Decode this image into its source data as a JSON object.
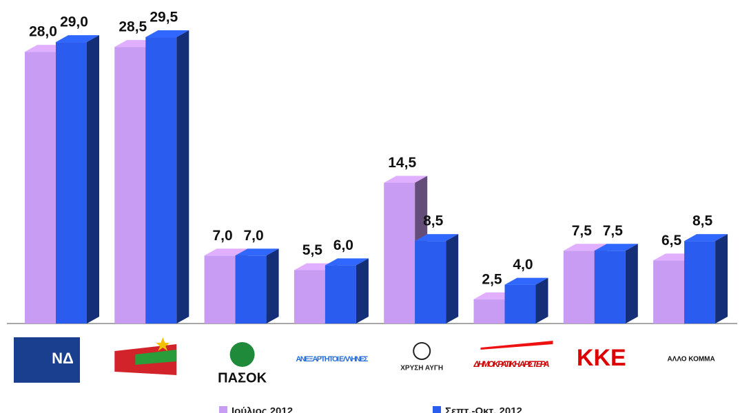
{
  "chart_data": {
    "type": "bar3d",
    "categories": [
      "ΝΔ",
      null,
      "ΠΑΣΟΚ",
      "ΑΝΕΞΑΡΤΗΤΟΙ ΕΛΛΗΝΕΣ",
      "ΧΡΥΣΗ ΑΥΓΗ",
      "ΔΗΜΟΚΡΑΤΙΚΗ ΑΡΙΣΤΕΡΑ",
      "ΚΚΕ",
      "ΑΛΛΟ ΚΟΜΜΑ"
    ],
    "series": [
      {
        "name": "Ιούλιος 2012",
        "color": "#c89cf2",
        "values": [
          28.0,
          28.5,
          7.0,
          5.5,
          14.5,
          2.5,
          7.5,
          6.5
        ],
        "value_labels": [
          "28,0",
          "28,5",
          "7,0",
          "5,5",
          "14,5",
          "2,5",
          "7,5",
          "6,5"
        ]
      },
      {
        "name": "Σεπτ.-Οκτ. 2012",
        "color": "#2a5cf0",
        "values": [
          29.0,
          29.5,
          7.0,
          6.0,
          8.5,
          4.0,
          7.5,
          8.5
        ],
        "value_labels": [
          "29,0",
          "29,5",
          "7,0",
          "6,0",
          "8,5",
          "4,0",
          "7,5",
          "8,5"
        ]
      }
    ]
  }
}
